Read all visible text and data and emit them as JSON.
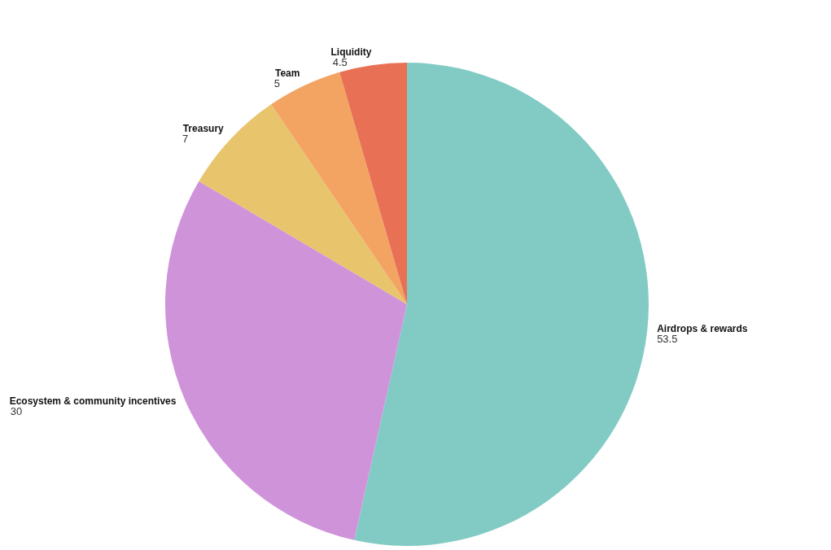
{
  "chart_data": {
    "type": "pie",
    "categories": [
      "Airdrops & rewards",
      "Ecosystem & community incentives",
      "Treasury",
      "Team",
      "Liquidity"
    ],
    "values": [
      53.5,
      30,
      7,
      5,
      4.5
    ],
    "colors": [
      "#82cbc4",
      "#cf93da",
      "#e8c46c",
      "#f3a463",
      "#e87155"
    ],
    "data_labels": true,
    "legend": false
  }
}
